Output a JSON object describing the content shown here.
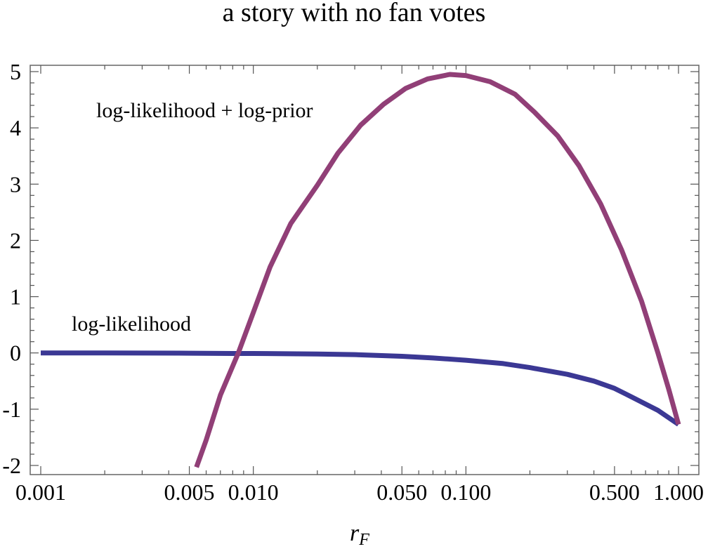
{
  "chart_data": {
    "type": "line",
    "title": "a story with no fan votes",
    "xlabel": "r",
    "xlabel_subscript": "F",
    "ylabel": "",
    "x_scale": "log",
    "xlim": [
      0.001,
      1.0
    ],
    "ylim": [
      -2.1,
      5.1
    ],
    "x_ticks": [
      {
        "value": 0.001,
        "label": "0.001"
      },
      {
        "value": 0.005,
        "label": "0.005"
      },
      {
        "value": 0.01,
        "label": "0.010"
      },
      {
        "value": 0.05,
        "label": "0.050"
      },
      {
        "value": 0.1,
        "label": "0.100"
      },
      {
        "value": 0.5,
        "label": "0.500"
      },
      {
        "value": 1.0,
        "label": "1.000"
      }
    ],
    "y_ticks": [
      {
        "value": -2,
        "label": "-2"
      },
      {
        "value": -1,
        "label": "-1"
      },
      {
        "value": 0,
        "label": "0"
      },
      {
        "value": 1,
        "label": "1"
      },
      {
        "value": 2,
        "label": "2"
      },
      {
        "value": 3,
        "label": "3"
      },
      {
        "value": 4,
        "label": "4"
      },
      {
        "value": 5,
        "label": "5"
      }
    ],
    "grid": false,
    "series": [
      {
        "name": "log-likelihood",
        "color": "#3b3894",
        "points": [
          [
            0.001,
            0.0
          ],
          [
            0.002,
            0.0
          ],
          [
            0.005,
            -0.005
          ],
          [
            0.008,
            -0.01
          ],
          [
            0.01,
            -0.01
          ],
          [
            0.02,
            -0.02
          ],
          [
            0.03,
            -0.03
          ],
          [
            0.05,
            -0.06
          ],
          [
            0.07,
            -0.09
          ],
          [
            0.1,
            -0.13
          ],
          [
            0.15,
            -0.19
          ],
          [
            0.2,
            -0.26
          ],
          [
            0.3,
            -0.38
          ],
          [
            0.4,
            -0.5
          ],
          [
            0.5,
            -0.63
          ],
          [
            0.6,
            -0.78
          ],
          [
            0.8,
            -1.02
          ],
          [
            1.0,
            -1.27
          ]
        ]
      },
      {
        "name": "log-likelihood + log-prior",
        "color": "#913f77",
        "points": [
          [
            0.0054,
            -2.03
          ],
          [
            0.006,
            -1.55
          ],
          [
            0.007,
            -0.75
          ],
          [
            0.0085,
            0.0
          ],
          [
            0.01,
            0.72
          ],
          [
            0.012,
            1.53
          ],
          [
            0.015,
            2.3
          ],
          [
            0.02,
            2.98
          ],
          [
            0.025,
            3.55
          ],
          [
            0.032,
            4.05
          ],
          [
            0.041,
            4.42
          ],
          [
            0.052,
            4.7
          ],
          [
            0.066,
            4.87
          ],
          [
            0.084,
            4.95
          ],
          [
            0.1,
            4.93
          ],
          [
            0.13,
            4.82
          ],
          [
            0.17,
            4.6
          ],
          [
            0.21,
            4.28
          ],
          [
            0.27,
            3.86
          ],
          [
            0.34,
            3.33
          ],
          [
            0.43,
            2.65
          ],
          [
            0.54,
            1.83
          ],
          [
            0.67,
            0.92
          ],
          [
            0.8,
            0.0
          ],
          [
            0.9,
            -0.65
          ],
          [
            1.0,
            -1.27
          ]
        ]
      }
    ],
    "annotations": [
      {
        "text": "log-likelihood + log-prior",
        "series": "log-likelihood + log-prior"
      },
      {
        "text": "log-likelihood",
        "series": "log-likelihood"
      }
    ]
  }
}
